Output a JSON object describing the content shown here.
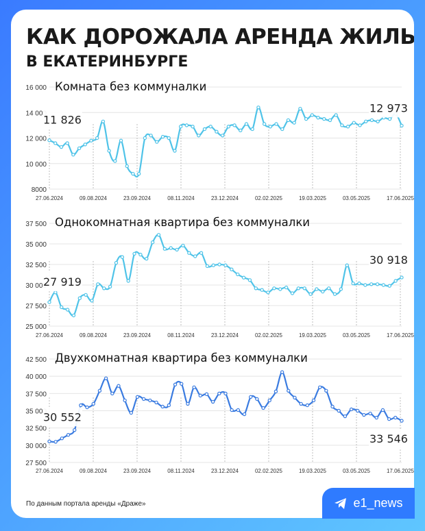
{
  "header": {
    "title": "КАК ДОРОЖАЛА АРЕНДА ЖИЛЬЯ",
    "subtitle": "В ЕКАТЕРИНБУРГЕ"
  },
  "footer": {
    "source": "По данным портала аренды «Драже»",
    "brand": "e1_news",
    "brand_icon": "telegram-icon"
  },
  "colors": {
    "background": "#3a7bff",
    "series_room": "#4fc3e8",
    "series_1room": "#4fc3e8",
    "series_2room": "#3a7be0"
  },
  "chart_data": [
    {
      "type": "line",
      "title": "Комната без коммуналки",
      "x_ticks": [
        "27.06.2024",
        "09.08.2024",
        "23.09.2024",
        "08.11.2024",
        "23.12.2024",
        "02.02.2025",
        "19.03.2025",
        "03.05.2025",
        "17.06.2025"
      ],
      "y_ticks": [
        "8000",
        "10 000",
        "12 000",
        "14 000",
        "16 000"
      ],
      "ylim": [
        8000,
        16000
      ],
      "grid": true,
      "start_label": "11 826",
      "end_label": "12 973",
      "series": [
        {
          "values": [
            11826,
            11600,
            11300,
            11600,
            10700,
            11200,
            11500,
            11800,
            12000,
            13300,
            11000,
            10200,
            11800,
            9800,
            9200,
            9200,
            12000,
            12200,
            11700,
            12100,
            12000,
            11000,
            12900,
            13000,
            12900,
            12200,
            12700,
            12900,
            12500,
            12200,
            12900,
            13000,
            12600,
            13100,
            12700,
            14400,
            13100,
            12900,
            13100,
            12700,
            13400,
            13200,
            14300,
            13500,
            13800,
            13600,
            13500,
            13400,
            13800,
            13000,
            12900,
            13200,
            13000,
            13300,
            13400,
            13300,
            13600,
            13500,
            13900,
            12973
          ]
        }
      ]
    },
    {
      "type": "line",
      "title": "Однокомнатная квартира без коммуналки",
      "x_ticks": [
        "27.06.2024",
        "09.08.2024",
        "23.09.2024",
        "08.11.2024",
        "23.12.2024",
        "02.02.2025",
        "19.03.2025",
        "03.05.2025",
        "17.06.2025"
      ],
      "y_ticks": [
        "25 000",
        "27 500",
        "30 000",
        "32 500",
        "35 000",
        "37 500"
      ],
      "ylim": [
        25000,
        37500
      ],
      "grid": true,
      "start_label": "27 919",
      "end_label": "30 918",
      "series": [
        {
          "values": [
            27919,
            29100,
            27300,
            27000,
            26300,
            28400,
            28800,
            28100,
            30100,
            29600,
            29800,
            32700,
            33400,
            30500,
            33800,
            33700,
            33200,
            35200,
            36100,
            34400,
            34500,
            34300,
            34800,
            33900,
            33500,
            33900,
            32300,
            32400,
            32500,
            32400,
            31900,
            31300,
            30900,
            30600,
            29600,
            29400,
            29100,
            29600,
            29500,
            29700,
            29000,
            29600,
            29600,
            28900,
            29500,
            29200,
            29600,
            28900,
            29500,
            32400,
            30200,
            30200,
            30000,
            30100,
            30100,
            30000,
            29900,
            30500,
            30918
          ]
        }
      ]
    },
    {
      "type": "line",
      "title": "Двухкомнатная квартира без коммуналки",
      "x_ticks": [
        "27.06.2024",
        "09.08.2024",
        "23.09.2024",
        "08.11.2024",
        "23.12.2024",
        "02.02.2025",
        "19.03.2025",
        "03.05.2025",
        "17.06.2025"
      ],
      "y_ticks": [
        "27 500",
        "30 000",
        "32 500",
        "35 000",
        "37 500",
        "40 000",
        "42 500"
      ],
      "ylim": [
        27500,
        42500
      ],
      "grid": true,
      "start_label": "30 552",
      "end_label": "33 546",
      "series": [
        {
          "values": [
            30552,
            30500,
            31000,
            31500,
            32200,
            35800,
            35500,
            36000,
            37900,
            39700,
            37500,
            38600,
            36500,
            34700,
            37000,
            36700,
            36500,
            36200,
            35600,
            35800,
            38800,
            38900,
            36000,
            38400,
            37200,
            37400,
            36300,
            37500,
            37500,
            35100,
            35100,
            34500,
            37000,
            36700,
            35400,
            36500,
            37800,
            40600,
            37900,
            36900,
            36000,
            35800,
            36500,
            38400,
            37900,
            35600,
            35000,
            34200,
            35200,
            35000,
            34400,
            34600,
            34000,
            35100,
            33800,
            34000,
            33546
          ]
        }
      ]
    }
  ]
}
